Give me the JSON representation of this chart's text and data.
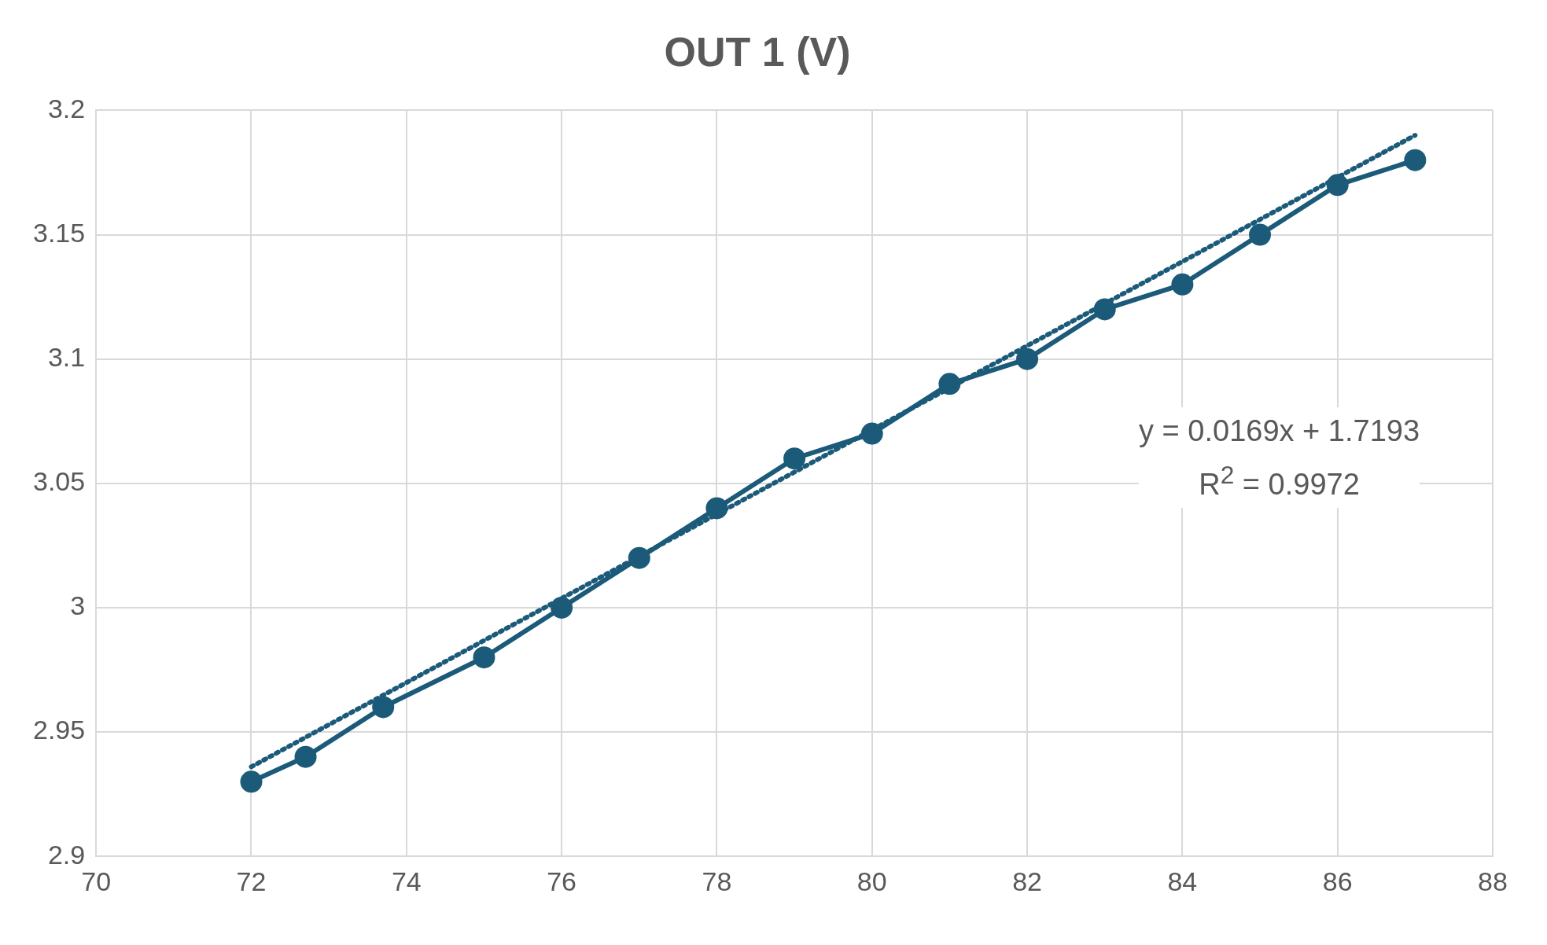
{
  "chart_data": {
    "type": "line",
    "title": "OUT 1 (V)",
    "xlim": [
      70,
      88
    ],
    "xticks": [
      70,
      72,
      74,
      76,
      78,
      80,
      82,
      84,
      86,
      88
    ],
    "ylim": [
      2.9,
      3.2
    ],
    "yticks": [
      2.9,
      2.95,
      3,
      3.05,
      3.1,
      3.15,
      3.2
    ],
    "grid": true,
    "legend": false,
    "series": [
      {
        "color": "#1b5a78",
        "marker": "circle",
        "line_style": "solid",
        "x": [
          72,
          72.7,
          73.7,
          75,
          76,
          77,
          78,
          79,
          80,
          81,
          82,
          83,
          84,
          85,
          86,
          87
        ],
        "values": [
          2.93,
          2.94,
          2.96,
          2.98,
          3.0,
          3.02,
          3.04,
          3.06,
          3.07,
          3.09,
          3.1,
          3.12,
          3.13,
          3.15,
          3.17,
          3.18
        ]
      },
      {
        "type": "line",
        "color": "#1b5a78",
        "marker": "none",
        "line_style": "dotted",
        "x": [
          72,
          87
        ],
        "values": [
          2.936,
          3.19
        ]
      }
    ],
    "annotations": [
      "y = 0.0169x + 1.7193",
      "R$^{2}$ = 0.9972"
    ]
  }
}
